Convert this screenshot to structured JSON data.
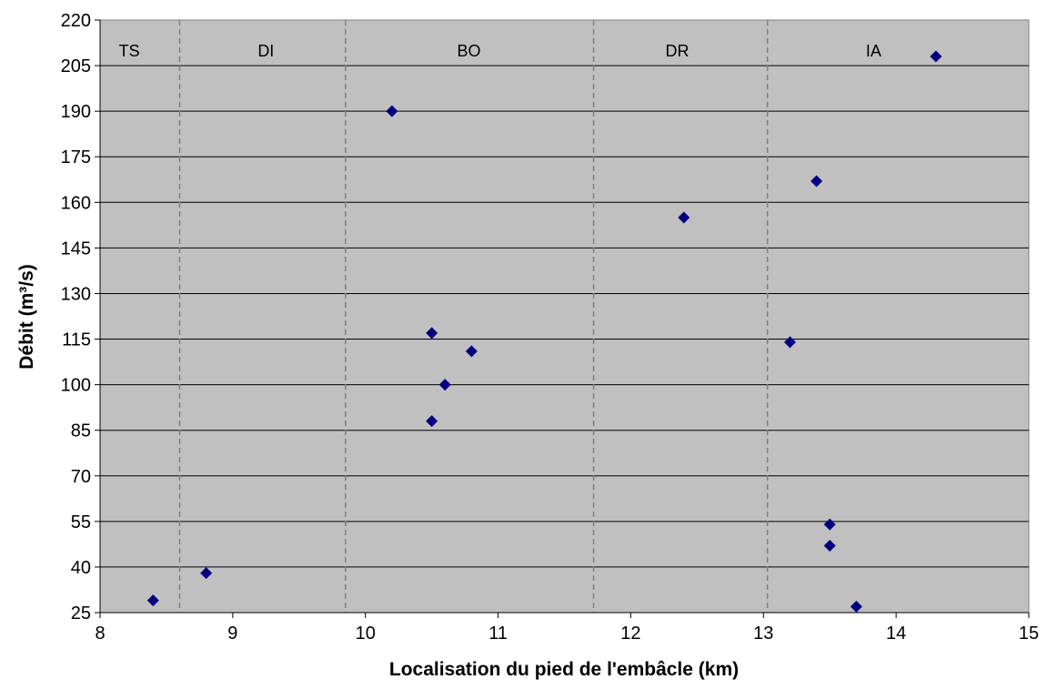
{
  "chart_data": {
    "type": "scatter",
    "xlabel": "Localisation du pied de l'embâcle (km)",
    "ylabel": "Débit (m³/s)",
    "xlim": [
      8,
      15
    ],
    "ylim": [
      25,
      220
    ],
    "x_ticks": [
      8,
      9,
      10,
      11,
      12,
      13,
      14,
      15
    ],
    "y_ticks": [
      25,
      40,
      55,
      70,
      85,
      100,
      115,
      130,
      145,
      160,
      175,
      190,
      205,
      220
    ],
    "grid": "horizontal",
    "plot_background": "#c0c0c0",
    "marker_color": "#000080",
    "marker": "diamond",
    "zone_boundaries": [
      8.6,
      9.85,
      11.72,
      13.03
    ],
    "zones": [
      {
        "label": "TS",
        "center": 8.22
      },
      {
        "label": "DI",
        "center": 9.25
      },
      {
        "label": "BO",
        "center": 10.78
      },
      {
        "label": "DR",
        "center": 12.35
      },
      {
        "label": "IA",
        "center": 13.83
      }
    ],
    "points": [
      {
        "x": 8.4,
        "y": 29
      },
      {
        "x": 8.8,
        "y": 38
      },
      {
        "x": 10.2,
        "y": 190
      },
      {
        "x": 10.5,
        "y": 117
      },
      {
        "x": 10.8,
        "y": 111
      },
      {
        "x": 10.6,
        "y": 100
      },
      {
        "x": 10.5,
        "y": 88
      },
      {
        "x": 12.4,
        "y": 155
      },
      {
        "x": 14.3,
        "y": 208
      },
      {
        "x": 13.4,
        "y": 167
      },
      {
        "x": 13.2,
        "y": 114
      },
      {
        "x": 13.5,
        "y": 54
      },
      {
        "x": 13.5,
        "y": 47
      },
      {
        "x": 13.7,
        "y": 27
      }
    ]
  }
}
